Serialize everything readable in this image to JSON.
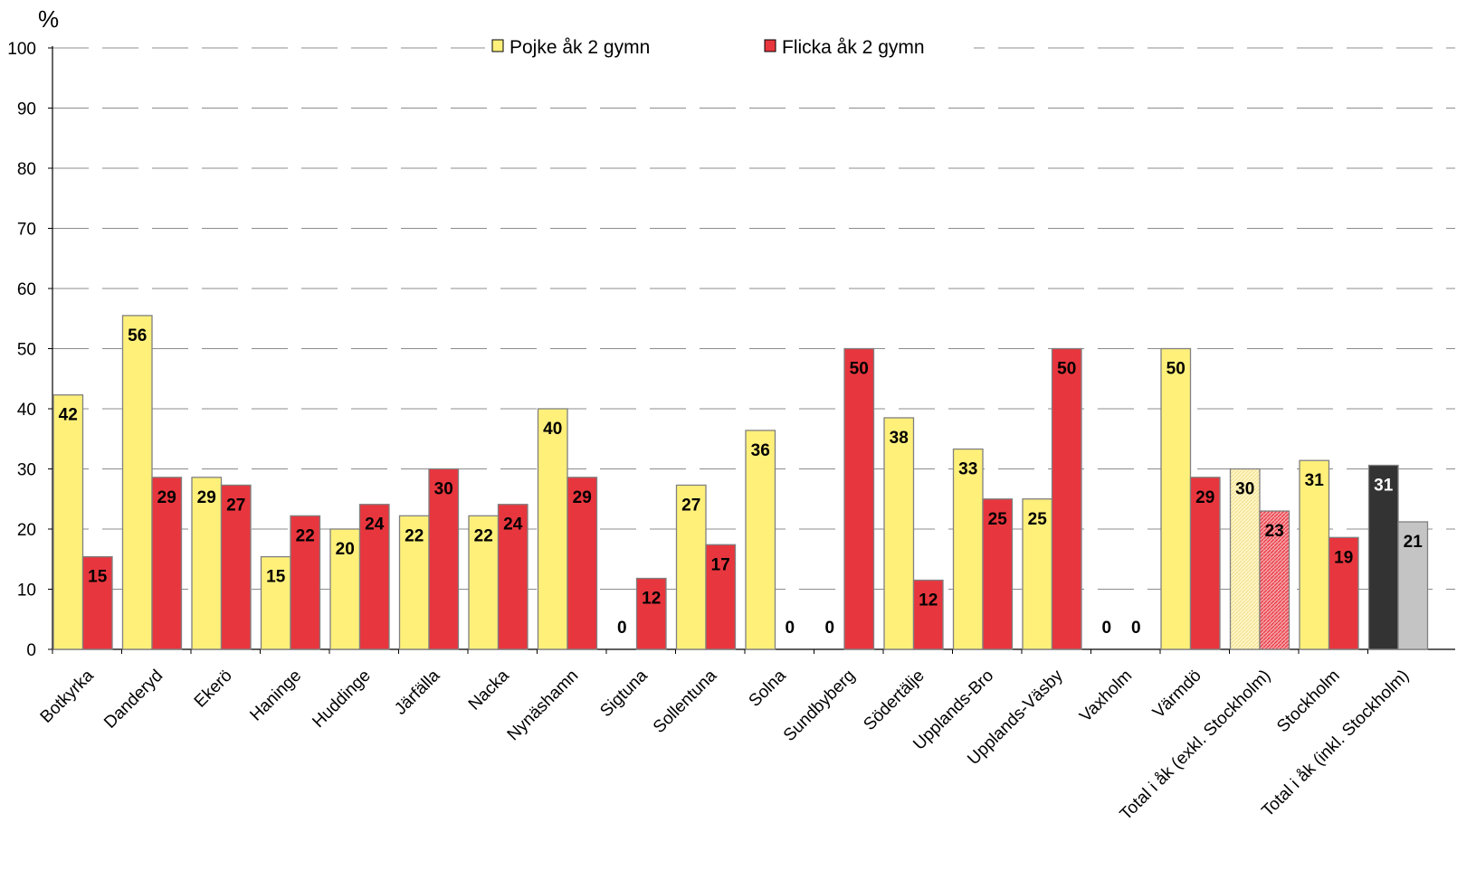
{
  "chart_data": {
    "type": "bar",
    "unit_label": "%",
    "ylim": [
      0,
      100
    ],
    "yticks": [
      0,
      10,
      20,
      30,
      40,
      50,
      60,
      70,
      80,
      90,
      100
    ],
    "grid": "dashed horizontal",
    "legend_position": "top-center",
    "categories": [
      "Botkyrka",
      "Danderyd",
      "Ekerö",
      "Haninge",
      "Huddinge",
      "Järfälla",
      "Nacka",
      "Nynäshamn",
      "Sigtuna",
      "Sollentuna",
      "Solna",
      "Sundbyberg",
      "Södertälje",
      "Upplands-Bro",
      "Upplands-Väsby",
      "Vaxholm",
      "Värmdö",
      "Total i åk (exkl. Stockholm)",
      "Stockholm",
      "Total i åk (inkl. Stockholm)"
    ],
    "series": [
      {
        "name": "Pojke åk 2 gymn",
        "values": [
          42.3,
          55.5,
          28.6,
          15.4,
          20.0,
          22.2,
          22.2,
          40.0,
          0,
          27.3,
          36.4,
          0,
          38.5,
          33.3,
          25.0,
          0,
          50.0,
          30.0,
          31.4,
          30.6
        ],
        "labels": [
          "42",
          "56",
          "29",
          "15",
          "20",
          "22",
          "22",
          "40",
          "0",
          "27",
          "36",
          "0",
          "38",
          "33",
          "25",
          "0",
          "50",
          "30",
          "31",
          "31"
        ]
      },
      {
        "name": "Flicka åk 2 gymn",
        "values": [
          15.4,
          28.6,
          27.3,
          22.2,
          24.1,
          30.0,
          24.1,
          28.6,
          11.8,
          17.4,
          0,
          50.0,
          11.5,
          25.0,
          50.0,
          0,
          28.6,
          23.0,
          18.6,
          21.2
        ],
        "labels": [
          "15",
          "29",
          "27",
          "22",
          "24",
          "30",
          "24",
          "29",
          "12",
          "17",
          "0",
          "50",
          "12",
          "25",
          "50",
          "0",
          "29",
          "23",
          "19",
          "21"
        ]
      }
    ],
    "colors": {
      "pojke": "#FFF07A",
      "flicka": "#E8363E",
      "total_exkl_pojke": "#FFF6C8",
      "total_exkl_flicka": "#F08088",
      "total_inkl_pojke": "#333333",
      "total_inkl_flicka": "#C4C4C4",
      "bar_outline": "#808080",
      "grid": "#8c8c8c"
    }
  }
}
